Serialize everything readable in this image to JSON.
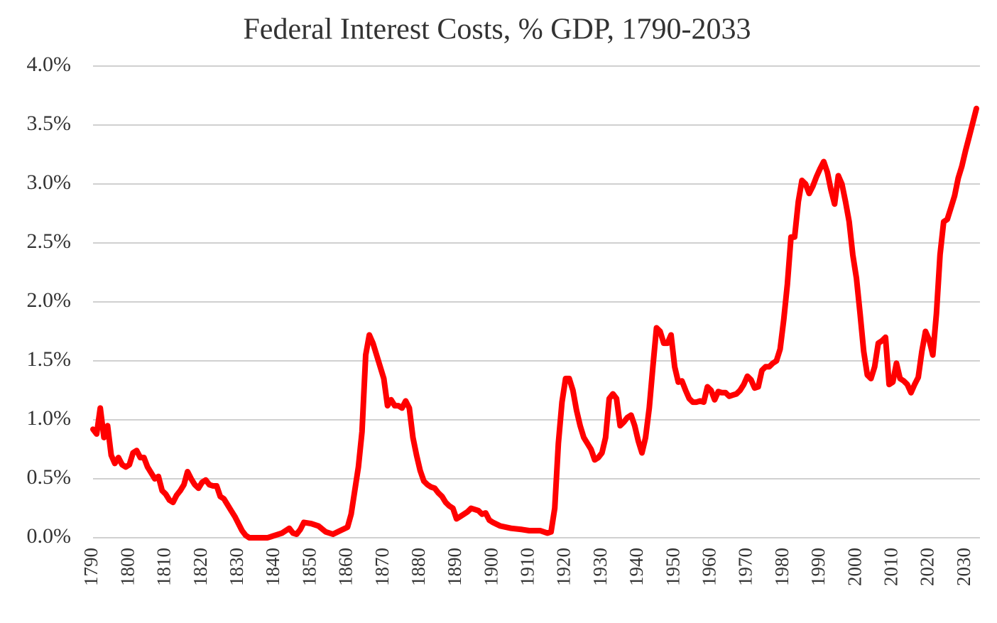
{
  "chart_data": {
    "type": "line",
    "title": "Federal Interest Costs, % GDP, 1790-2033",
    "x": [
      1790,
      1791,
      1792,
      1793,
      1794,
      1795,
      1796,
      1797,
      1798,
      1799,
      1800,
      1801,
      1802,
      1803,
      1804,
      1805,
      1806,
      1807,
      1808,
      1809,
      1810,
      1811,
      1812,
      1813,
      1814,
      1815,
      1816,
      1817,
      1818,
      1819,
      1820,
      1821,
      1822,
      1823,
      1824,
      1825,
      1826,
      1827,
      1828,
      1829,
      1830,
      1831,
      1832,
      1833,
      1835,
      1838,
      1840,
      1842,
      1844,
      1845,
      1846,
      1847,
      1848,
      1850,
      1852,
      1854,
      1856,
      1858,
      1860,
      1861,
      1862,
      1863,
      1864,
      1865,
      1866,
      1867,
      1868,
      1869,
      1870,
      1871,
      1872,
      1873,
      1874,
      1875,
      1876,
      1877,
      1878,
      1879,
      1880,
      1881,
      1882,
      1883,
      1884,
      1885,
      1886,
      1887,
      1888,
      1889,
      1890,
      1891,
      1893,
      1894,
      1896,
      1897,
      1898,
      1899,
      1900,
      1902,
      1905,
      1908,
      1910,
      1913,
      1915,
      1916,
      1917,
      1918,
      1919,
      1920,
      1921,
      1922,
      1923,
      1924,
      1925,
      1926,
      1927,
      1928,
      1929,
      1930,
      1931,
      1932,
      1933,
      1934,
      1935,
      1936,
      1937,
      1938,
      1939,
      1940,
      1941,
      1942,
      1943,
      1944,
      1945,
      1946,
      1947,
      1948,
      1949,
      1950,
      1951,
      1952,
      1953,
      1954,
      1955,
      1956,
      1957,
      1958,
      1959,
      1960,
      1961,
      1962,
      1963,
      1964,
      1965,
      1966,
      1967,
      1968,
      1969,
      1970,
      1971,
      1972,
      1973,
      1974,
      1975,
      1976,
      1977,
      1978,
      1979,
      1980,
      1981,
      1982,
      1983,
      1984,
      1985,
      1986,
      1987,
      1988,
      1989,
      1990,
      1991,
      1992,
      1993,
      1994,
      1995,
      1996,
      1997,
      1998,
      1999,
      2000,
      2001,
      2002,
      2003,
      2004,
      2005,
      2006,
      2007,
      2008,
      2009,
      2010,
      2011,
      2012,
      2013,
      2014,
      2015,
      2016,
      2017,
      2018,
      2019,
      2020,
      2021,
      2022,
      2023,
      2024,
      2025,
      2026,
      2027,
      2028,
      2029,
      2030,
      2031,
      2032,
      2033
    ],
    "values": [
      0.92,
      0.88,
      1.1,
      0.85,
      0.95,
      0.7,
      0.63,
      0.68,
      0.62,
      0.6,
      0.62,
      0.72,
      0.74,
      0.68,
      0.68,
      0.6,
      0.55,
      0.5,
      0.52,
      0.4,
      0.37,
      0.32,
      0.3,
      0.36,
      0.4,
      0.45,
      0.56,
      0.5,
      0.45,
      0.42,
      0.47,
      0.49,
      0.45,
      0.44,
      0.44,
      0.35,
      0.33,
      0.28,
      0.23,
      0.18,
      0.12,
      0.06,
      0.02,
      0,
      0,
      0,
      0.02,
      0.04,
      0.08,
      0.04,
      0.03,
      0.07,
      0.13,
      0.12,
      0.1,
      0.05,
      0.03,
      0.06,
      0.09,
      0.2,
      0.4,
      0.6,
      0.9,
      1.55,
      1.72,
      1.65,
      1.55,
      1.45,
      1.35,
      1.12,
      1.17,
      1.12,
      1.12,
      1.1,
      1.16,
      1.1,
      0.85,
      0.7,
      0.57,
      0.48,
      0.45,
      0.43,
      0.42,
      0.38,
      0.35,
      0.3,
      0.27,
      0.25,
      0.16,
      0.18,
      0.22,
      0.25,
      0.23,
      0.2,
      0.21,
      0.15,
      0.13,
      0.1,
      0.08,
      0.07,
      0.06,
      0.06,
      0.04,
      0.05,
      0.25,
      0.8,
      1.15,
      1.35,
      1.35,
      1.25,
      1.08,
      0.95,
      0.85,
      0.8,
      0.75,
      0.66,
      0.68,
      0.72,
      0.85,
      1.18,
      1.22,
      1.18,
      0.95,
      0.98,
      1.02,
      1.04,
      0.95,
      0.82,
      0.72,
      0.85,
      1.1,
      1.45,
      1.78,
      1.75,
      1.65,
      1.65,
      1.72,
      1.45,
      1.32,
      1.33,
      1.25,
      1.18,
      1.15,
      1.15,
      1.16,
      1.15,
      1.28,
      1.25,
      1.17,
      1.24,
      1.23,
      1.23,
      1.2,
      1.21,
      1.22,
      1.25,
      1.3,
      1.37,
      1.34,
      1.27,
      1.28,
      1.42,
      1.45,
      1.45,
      1.48,
      1.5,
      1.6,
      1.85,
      2.15,
      2.55,
      2.55,
      2.85,
      3.03,
      3.0,
      2.92,
      2.98,
      3.06,
      3.13,
      3.19,
      3.1,
      2.95,
      2.83,
      3.07,
      3.0,
      2.85,
      2.68,
      2.4,
      2.2,
      1.9,
      1.58,
      1.38,
      1.35,
      1.45,
      1.65,
      1.67,
      1.7,
      1.3,
      1.32,
      1.48,
      1.35,
      1.33,
      1.3,
      1.23,
      1.3,
      1.36,
      1.58,
      1.75,
      1.68,
      1.55,
      1.9,
      2.4,
      2.68,
      2.7,
      2.8,
      2.9,
      3.05,
      3.15,
      3.28,
      3.4,
      3.52,
      3.64
    ],
    "color": "#ff0000",
    "xlim": [
      1790,
      2033
    ],
    "xticks": [
      1790,
      1800,
      1810,
      1820,
      1830,
      1840,
      1850,
      1860,
      1870,
      1880,
      1890,
      1900,
      1910,
      1920,
      1930,
      1940,
      1950,
      1960,
      1970,
      1980,
      1990,
      2000,
      2010,
      2020,
      2030
    ],
    "ylim": [
      0,
      4
    ],
    "yticks": [
      {
        "value": 0,
        "label": "0.0%"
      },
      {
        "value": 0.5,
        "label": "0.5%"
      },
      {
        "value": 1,
        "label": "1.0%"
      },
      {
        "value": 1.5,
        "label": "1.5%"
      },
      {
        "value": 2,
        "label": "2.0%"
      },
      {
        "value": 2.5,
        "label": "2.5%"
      },
      {
        "value": 3,
        "label": "3.0%"
      },
      {
        "value": 3.5,
        "label": "3.5%"
      },
      {
        "value": 4,
        "label": "4.0%"
      }
    ],
    "grid": true
  }
}
